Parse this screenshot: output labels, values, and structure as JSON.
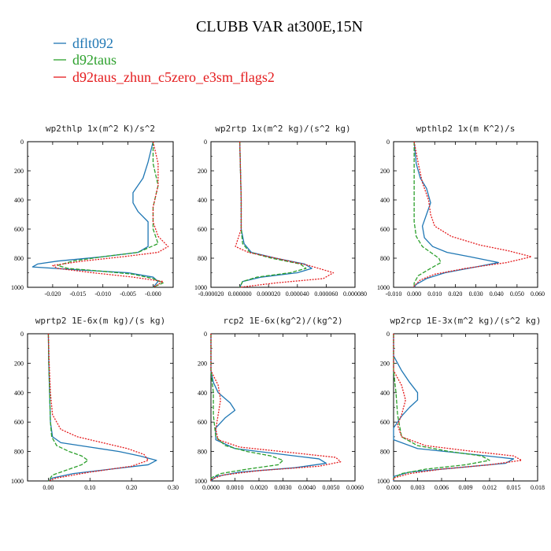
{
  "title": "CLUBB VAR at300E,15N",
  "colors": {
    "s1": "#1f77b4",
    "s2": "#2ca02c",
    "s3": "#e41a1c"
  },
  "legend": [
    {
      "label": "dflt092",
      "color": "#1f77b4"
    },
    {
      "label": "d92taus",
      "color": "#2ca02c"
    },
    {
      "label": "d92taus_zhun_c5zero_e3sm_flags2",
      "color": "#e41a1c"
    }
  ],
  "chart_data": [
    {
      "type": "line",
      "title": "wp2thlp  1x(m^2 K)/s^2",
      "xlim": [
        -0.025,
        0.004
      ],
      "ylim": [
        1000,
        0
      ],
      "xticks": [
        -0.02,
        -0.015,
        -0.01,
        -0.005,
        0.0
      ],
      "xtick_labels": [
        "-0.020",
        "-0.015",
        "-0.010",
        "-0.005",
        "-0.000"
      ],
      "yticks": [
        0,
        200,
        400,
        600,
        800,
        1000
      ],
      "ytick_labels": [
        "0",
        "200",
        "400",
        "600",
        "800",
        "1000"
      ],
      "series": [
        {
          "name": "dflt092",
          "y": [
            0,
            140,
            250,
            350,
            420,
            480,
            550,
            640,
            720,
            760,
            790,
            820,
            840,
            860,
            880,
            900,
            930,
            960,
            1000
          ],
          "x": [
            0,
            -0.001,
            -0.002,
            -0.004,
            -0.004,
            -0.003,
            -0.001,
            -0.001,
            -0.001,
            -0.003,
            -0.01,
            -0.019,
            -0.023,
            -0.024,
            -0.015,
            -0.005,
            0.0,
            0.001,
            0.0
          ]
        },
        {
          "name": "d92taus",
          "y": [
            0,
            150,
            300,
            450,
            600,
            700,
            760,
            790,
            820,
            850,
            870,
            890,
            910,
            940,
            970,
            1000
          ],
          "x": [
            0,
            0.0,
            0.001,
            0.0,
            0.0,
            0.001,
            -0.003,
            -0.01,
            -0.016,
            -0.019,
            -0.017,
            -0.01,
            -0.004,
            0.0,
            0.002,
            0.0
          ]
        },
        {
          "name": "d92taus_zhun_c5zero_e3sm_flags2",
          "y": [
            0,
            150,
            300,
            450,
            550,
            650,
            720,
            760,
            790,
            820,
            850,
            870,
            900,
            930,
            960,
            1000
          ],
          "x": [
            0,
            0.001,
            0.001,
            0.0,
            0.0,
            0.001,
            0.003,
            0.001,
            -0.006,
            -0.014,
            -0.02,
            -0.019,
            -0.012,
            -0.004,
            0.002,
            0.0
          ]
        }
      ]
    },
    {
      "type": "line",
      "title": "wp2rtp  1x(m^2 kg)/(s^2 kg)",
      "xlim": [
        -2e-05,
        8e-05
      ],
      "ylim": [
        1000,
        0
      ],
      "xticks": [
        -2e-05,
        0.0,
        2e-05,
        4e-05,
        6e-05,
        8e-05
      ],
      "xtick_labels": [
        "-0.000020",
        "0.000000",
        "0.000020",
        "0.000040",
        "0.000060",
        "0.000080"
      ],
      "yticks": [
        0,
        200,
        400,
        600,
        800,
        1000
      ],
      "ytick_labels": [
        "0",
        "200",
        "400",
        "600",
        "800",
        "1000"
      ],
      "series": [
        {
          "name": "dflt092",
          "y": [
            0,
            200,
            400,
            600,
            700,
            760,
            800,
            840,
            870,
            900,
            930,
            960,
            1000
          ],
          "x": [
            0,
            5e-07,
            1e-06,
            1e-06,
            3e-06,
            8e-06,
            2.5e-05,
            4.5e-05,
            5e-05,
            4e-05,
            1.5e-05,
            2e-06,
            0.0
          ]
        },
        {
          "name": "d92taus",
          "y": [
            0,
            200,
            400,
            600,
            700,
            760,
            800,
            840,
            870,
            900,
            930,
            960,
            1000
          ],
          "x": [
            0,
            5e-07,
            1e-06,
            1e-06,
            2e-06,
            7e-06,
            2.2e-05,
            4.2e-05,
            4.6e-05,
            3.5e-05,
            1.2e-05,
            2e-06,
            0.0
          ]
        },
        {
          "name": "d92taus_zhun_c5zero_e3sm_flags2",
          "y": [
            0,
            200,
            400,
            600,
            720,
            760,
            800,
            850,
            900,
            940,
            970,
            1000
          ],
          "x": [
            0,
            5e-07,
            1e-06,
            1e-06,
            -3e-06,
            6e-06,
            2.5e-05,
            4.8e-05,
            6.5e-05,
            5.8e-05,
            2.5e-05,
            0.0
          ]
        }
      ]
    },
    {
      "type": "line",
      "title": "wpthlp2  1x(m K^2)/s",
      "xlim": [
        -0.01,
        0.06
      ],
      "ylim": [
        1000,
        0
      ],
      "xticks": [
        -0.01,
        0.0,
        0.01,
        0.02,
        0.03,
        0.04,
        0.05,
        0.06
      ],
      "xtick_labels": [
        "-0.010",
        "0.000",
        "0.010",
        "0.020",
        "0.030",
        "0.040",
        "0.050",
        "0.060"
      ],
      "yticks": [
        0,
        200,
        400,
        600,
        800,
        1000
      ],
      "ytick_labels": [
        "0",
        "200",
        "400",
        "600",
        "800",
        "1000"
      ],
      "series": [
        {
          "name": "dflt092",
          "y": [
            0,
            150,
            250,
            320,
            420,
            500,
            580,
            660,
            720,
            760,
            790,
            830,
            860,
            900,
            940,
            980,
            1000
          ],
          "x": [
            0,
            0.001,
            0.003,
            0.006,
            0.008,
            0.006,
            0.004,
            0.005,
            0.009,
            0.016,
            0.027,
            0.041,
            0.03,
            0.015,
            0.006,
            0.001,
            0.0
          ]
        },
        {
          "name": "d92taus",
          "y": [
            0,
            200,
            400,
            550,
            650,
            720,
            760,
            800,
            830,
            870,
            920,
            970,
            1000
          ],
          "x": [
            0,
            0.0,
            0.0,
            0.0,
            0.001,
            0.004,
            0.008,
            0.012,
            0.013,
            0.008,
            0.002,
            0.0,
            0.0
          ]
        },
        {
          "name": "d92taus_zhun_c5zero_e3sm_flags2",
          "y": [
            0,
            150,
            280,
            400,
            500,
            580,
            650,
            710,
            750,
            790,
            830,
            870,
            910,
            950,
            990,
            1000
          ],
          "x": [
            0,
            0.002,
            0.004,
            0.007,
            0.008,
            0.01,
            0.018,
            0.032,
            0.046,
            0.057,
            0.045,
            0.025,
            0.01,
            0.003,
            0.0,
            0.0
          ]
        }
      ]
    },
    {
      "type": "line",
      "title": "wprtp2  1E-6x(m kg)/(s kg)",
      "xlim": [
        -0.05,
        0.3
      ],
      "ylim": [
        1000,
        0
      ],
      "xticks": [
        0.0,
        0.1,
        0.2,
        0.3
      ],
      "xtick_labels": [
        "0.00",
        "0.10",
        "0.20",
        "0.30"
      ],
      "yticks": [
        0,
        200,
        400,
        600,
        800,
        1000
      ],
      "ytick_labels": [
        "0",
        "200",
        "400",
        "600",
        "800",
        "1000"
      ],
      "series": [
        {
          "name": "dflt092",
          "y": [
            0,
            200,
            400,
            600,
            700,
            740,
            770,
            800,
            830,
            860,
            890,
            920,
            950,
            980,
            1000
          ],
          "x": [
            0.0,
            0.001,
            0.003,
            0.005,
            0.01,
            0.03,
            0.1,
            0.17,
            0.22,
            0.26,
            0.24,
            0.15,
            0.06,
            0.01,
            0.0
          ]
        },
        {
          "name": "d92taus",
          "y": [
            0,
            200,
            400,
            600,
            700,
            760,
            800,
            830,
            860,
            890,
            930,
            960,
            1000
          ],
          "x": [
            0.0,
            0.001,
            0.003,
            0.005,
            0.008,
            0.02,
            0.05,
            0.08,
            0.095,
            0.08,
            0.04,
            0.01,
            0.0
          ]
        },
        {
          "name": "d92taus_zhun_c5zero_e3sm_flags2",
          "y": [
            0,
            200,
            400,
            550,
            650,
            700,
            740,
            780,
            820,
            860,
            900,
            940,
            980,
            1000
          ],
          "x": [
            0.0,
            0.002,
            0.005,
            0.01,
            0.03,
            0.07,
            0.13,
            0.19,
            0.23,
            0.24,
            0.2,
            0.1,
            0.02,
            0.0
          ]
        }
      ]
    },
    {
      "type": "line",
      "title": "rcp2  1E-6x(kg^2)/(kg^2)",
      "xlim": [
        0,
        0.006
      ],
      "ylim": [
        1000,
        0
      ],
      "xticks": [
        0.0,
        0.001,
        0.002,
        0.003,
        0.004,
        0.005,
        0.006
      ],
      "xtick_labels": [
        "0.0000",
        "0.0010",
        "0.0020",
        "0.0030",
        "0.0040",
        "0.0050",
        "0.0060"
      ],
      "yticks": [
        0,
        200,
        400,
        600,
        800,
        1000
      ],
      "ytick_labels": [
        "0",
        "200",
        "400",
        "600",
        "800",
        "1000"
      ],
      "series": [
        {
          "name": "dflt092",
          "y": [
            0,
            250,
            330,
            400,
            470,
            520,
            570,
            640,
            720,
            780,
            820,
            850,
            880,
            910,
            940,
            970,
            1000
          ],
          "x": [
            0.0,
            0.0,
            0.0001,
            0.0003,
            0.0008,
            0.001,
            0.0006,
            0.0002,
            0.0002,
            0.001,
            0.003,
            0.0045,
            0.0048,
            0.0035,
            0.0012,
            0.0002,
            0.0
          ]
        },
        {
          "name": "d92taus",
          "y": [
            0,
            250,
            400,
            550,
            700,
            760,
            800,
            830,
            860,
            890,
            920,
            950,
            980,
            1000
          ],
          "x": [
            0.0,
            0.0,
            0.0001,
            0.0001,
            0.0002,
            0.0006,
            0.0015,
            0.0025,
            0.003,
            0.0028,
            0.0015,
            0.0004,
            0.0,
            0.0
          ]
        },
        {
          "name": "d92taus_zhun_c5zero_e3sm_flags2",
          "y": [
            0,
            250,
            350,
            450,
            550,
            650,
            720,
            770,
            810,
            840,
            870,
            900,
            930,
            960,
            990,
            1000
          ],
          "x": [
            0.0,
            0.0,
            0.0003,
            0.0004,
            0.0003,
            0.0002,
            0.0003,
            0.0012,
            0.0035,
            0.0052,
            0.0054,
            0.0045,
            0.002,
            0.0005,
            0.0,
            0.0
          ]
        }
      ]
    },
    {
      "type": "line",
      "title": "wp2rcp  1E-3x(m^2 kg)/(s^2 kg)",
      "xlim": [
        0,
        0.018
      ],
      "ylim": [
        1000,
        0
      ],
      "xticks": [
        0.0,
        0.003,
        0.006,
        0.009,
        0.012,
        0.015,
        0.018
      ],
      "xtick_labels": [
        "0.000",
        "0.003",
        "0.006",
        "0.009",
        "0.012",
        "0.015",
        "0.018"
      ],
      "yticks": [
        0,
        200,
        400,
        600,
        800,
        1000
      ],
      "ytick_labels": [
        "0",
        "200",
        "400",
        "600",
        "800",
        "1000"
      ],
      "series": [
        {
          "name": "dflt092",
          "y": [
            0,
            150,
            250,
            330,
            400,
            450,
            500,
            560,
            640,
            720,
            780,
            820,
            850,
            880,
            910,
            940,
            970,
            1000
          ],
          "x": [
            0.0,
            0.0,
            0.001,
            0.002,
            0.003,
            0.003,
            0.002,
            0.001,
            0.0,
            0.0,
            0.003,
            0.01,
            0.015,
            0.014,
            0.008,
            0.002,
            0.0,
            0.0
          ]
        },
        {
          "name": "d92taus",
          "y": [
            0,
            250,
            400,
            550,
            700,
            760,
            800,
            830,
            860,
            890,
            920,
            950,
            980,
            1000
          ],
          "x": [
            0.0,
            0.0,
            0.0003,
            0.0005,
            0.001,
            0.003,
            0.007,
            0.011,
            0.012,
            0.009,
            0.004,
            0.001,
            0.0,
            0.0
          ]
        },
        {
          "name": "d92taus_zhun_c5zero_e3sm_flags2",
          "y": [
            0,
            250,
            350,
            450,
            550,
            620,
            700,
            760,
            800,
            830,
            860,
            890,
            920,
            950,
            980,
            1000
          ],
          "x": [
            0.0,
            0.0,
            0.001,
            0.0015,
            0.001,
            0.0005,
            0.001,
            0.004,
            0.01,
            0.015,
            0.016,
            0.012,
            0.006,
            0.002,
            0.0,
            0.0
          ]
        }
      ]
    }
  ]
}
